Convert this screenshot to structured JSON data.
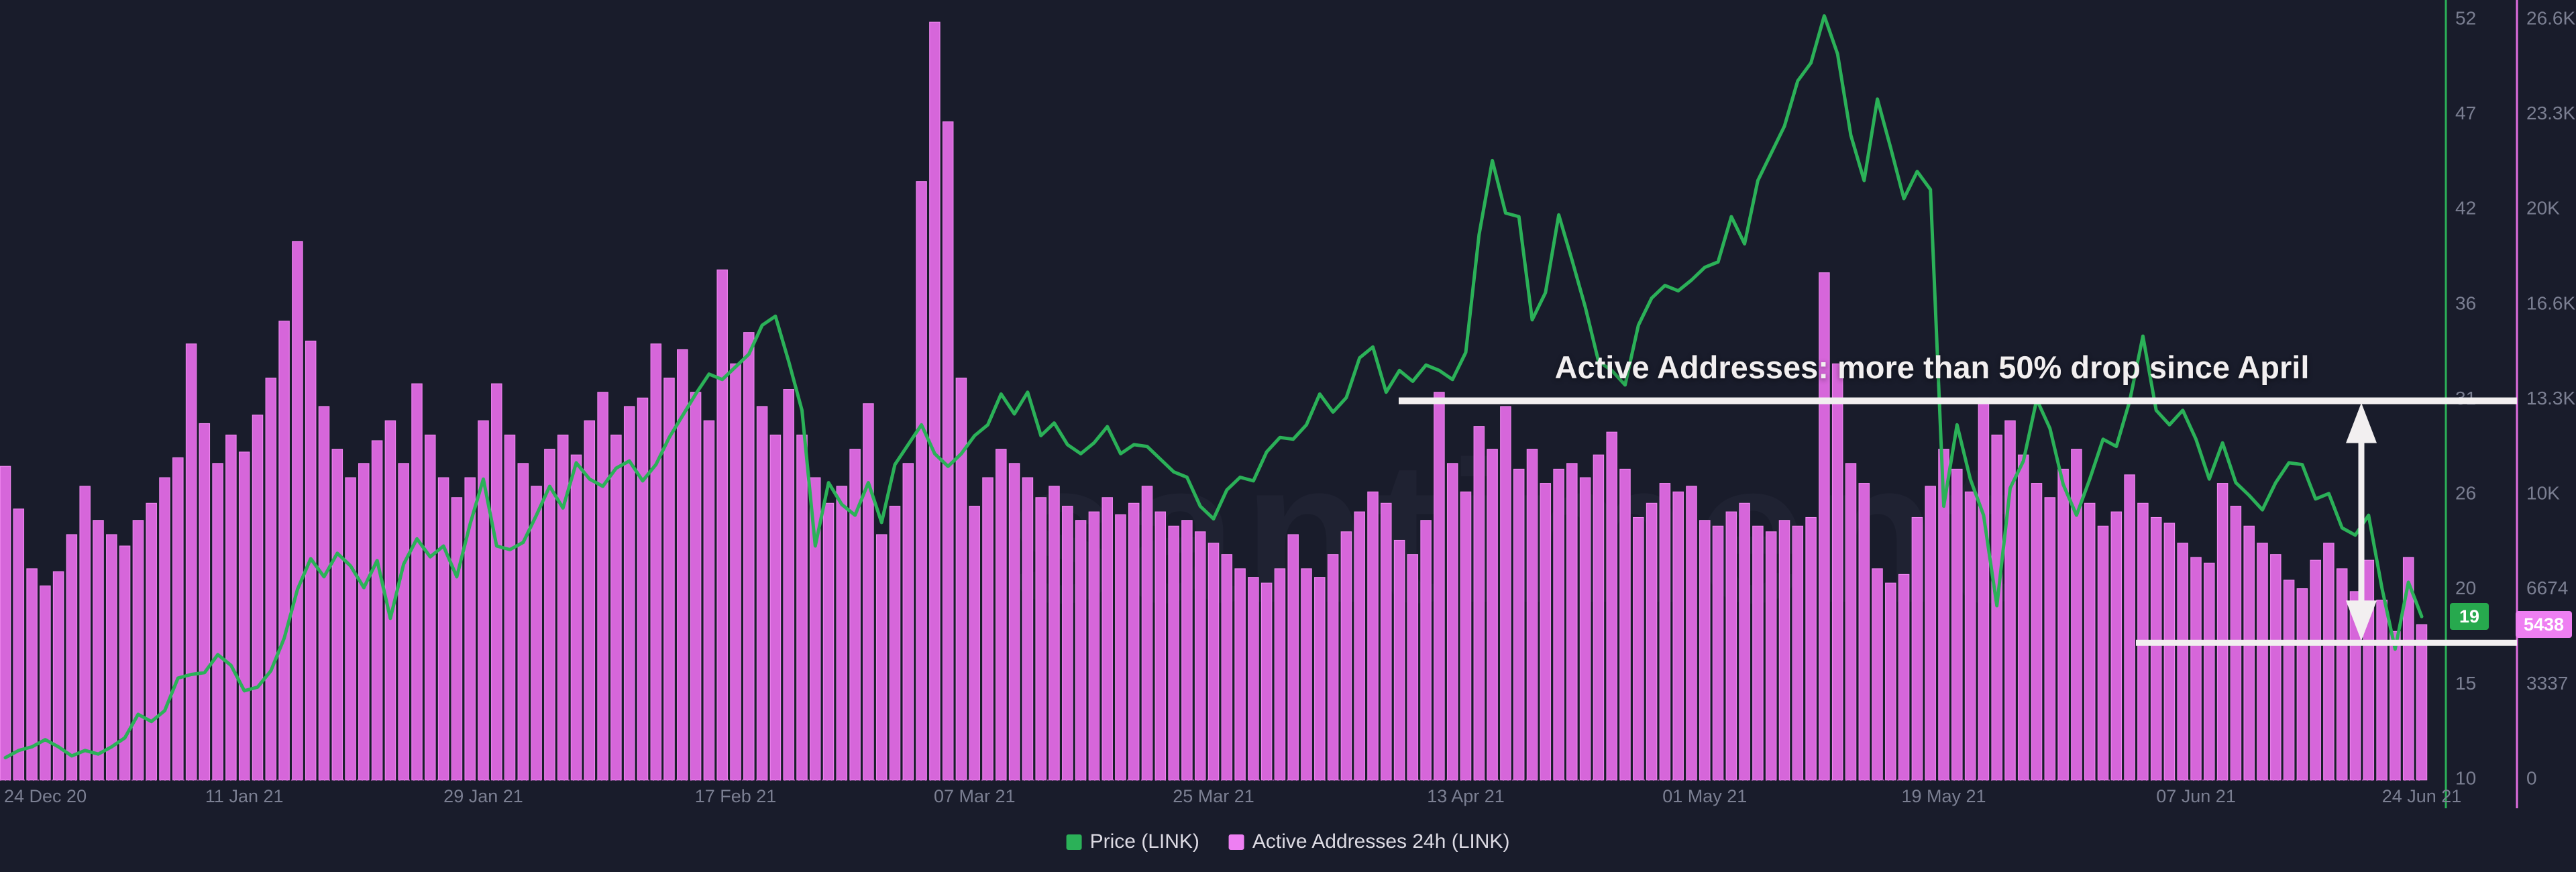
{
  "watermark": {
    "text": "santiment"
  },
  "annotation": {
    "text": "Active Addresses: more than 50% drop since April",
    "upper_level_addresses": 13300,
    "lower_level_addresses": 4800
  },
  "badges": {
    "price": {
      "label": "19",
      "value": 19
    },
    "addresses": {
      "label": "5438",
      "value": 5438
    }
  },
  "legend": [
    {
      "label": "Price (LINK)",
      "color": "#2bb158"
    },
    {
      "label": "Active Addresses 24h (LINK)",
      "color": "#ee7ff2"
    }
  ],
  "colors": {
    "background": "#191c2b",
    "price_line": "#2bb158",
    "price_axis_line": "#2bb158",
    "addresses_bar": "#d666da",
    "addresses_bar_edge": "#ef85f0",
    "addresses_axis_line": "#e26ee2",
    "axis_text": "#7b7f92",
    "annotation_white": "#f2eff0",
    "baseline_dotted": "rgba(214,102,218,0.55)"
  },
  "chart_data": {
    "type": "combo",
    "title": "",
    "frequency": "daily",
    "x_start_label": "24 Dec 20",
    "x_end_label": "24 Jun 21",
    "x_tick_labels": [
      {
        "label": "24 Dec 20",
        "day": 0
      },
      {
        "label": "11 Jan 21",
        "day": 18
      },
      {
        "label": "29 Jan 21",
        "day": 36
      },
      {
        "label": "17 Feb 21",
        "day": 55
      },
      {
        "label": "07 Mar 21",
        "day": 73
      },
      {
        "label": "25 Mar 21",
        "day": 91
      },
      {
        "label": "13 Apr 21",
        "day": 110
      },
      {
        "label": "01 May 21",
        "day": 128
      },
      {
        "label": "19 May 21",
        "day": 146
      },
      {
        "label": "07 Jun 21",
        "day": 165
      },
      {
        "label": "24 Jun 21",
        "day": 182
      }
    ],
    "price_axis": {
      "side": "right-inner",
      "min": 10,
      "max": 52,
      "tick_labels": [
        "52",
        "47",
        "42",
        "36",
        "31",
        "26",
        "20",
        "15",
        "10"
      ]
    },
    "addresses_axis": {
      "side": "right-outer",
      "min": 0,
      "max": 26696,
      "tick_labels": [
        "26.6K",
        "23.3K",
        "20K",
        "16.6K",
        "13.3K",
        "10K",
        "6674",
        "3337",
        "0"
      ]
    },
    "series": [
      {
        "name": "Price (LINK)",
        "type": "line",
        "axis": "price",
        "color": "#2bb158",
        "values": [
          11.2,
          11.6,
          11.8,
          12.2,
          11.8,
          11.3,
          11.6,
          11.4,
          11.8,
          12.3,
          13.6,
          13.2,
          13.8,
          15.6,
          15.8,
          15.9,
          16.9,
          16.3,
          14.9,
          15.1,
          16.0,
          17.8,
          20.5,
          22.2,
          21.2,
          22.5,
          21.8,
          20.6,
          22.1,
          18.9,
          21.9,
          23.3,
          22.3,
          22.9,
          21.2,
          24.1,
          26.6,
          22.9,
          22.7,
          23.1,
          24.6,
          26.2,
          25.0,
          27.5,
          26.6,
          26.2,
          27.2,
          27.6,
          26.5,
          27.4,
          28.9,
          30.1,
          31.3,
          32.4,
          32.1,
          32.8,
          33.5,
          35.1,
          35.6,
          33.1,
          30.4,
          22.9,
          26.4,
          25.2,
          24.6,
          26.4,
          24.2,
          27.4,
          28.5,
          29.6,
          28.0,
          27.3,
          28.0,
          29.0,
          29.6,
          31.3,
          30.2,
          31.4,
          29.0,
          29.7,
          28.5,
          28.0,
          28.6,
          29.5,
          28.0,
          28.5,
          28.4,
          27.7,
          27.0,
          26.7,
          25.1,
          24.4,
          26.0,
          26.7,
          26.5,
          28.1,
          28.9,
          28.8,
          29.6,
          31.3,
          30.3,
          31.1,
          33.3,
          33.9,
          31.4,
          32.6,
          32.0,
          32.9,
          32.6,
          32.1,
          33.6,
          40.1,
          44.2,
          41.3,
          41.1,
          35.4,
          36.9,
          41.2,
          38.7,
          36.1,
          33.1,
          32.6,
          31.8,
          35.1,
          36.6,
          37.3,
          37.0,
          37.6,
          38.3,
          38.6,
          41.1,
          39.6,
          43.1,
          44.6,
          46.1,
          48.6,
          49.6,
          52.2,
          50.1,
          45.6,
          43.1,
          47.6,
          44.9,
          42.1,
          43.6,
          42.6,
          25.1,
          29.6,
          26.6,
          24.6,
          19.6,
          26.1,
          27.6,
          31.0,
          29.4,
          26.3,
          24.6,
          26.6,
          28.8,
          28.4,
          30.9,
          34.5,
          30.4,
          29.6,
          30.4,
          28.8,
          26.6,
          28.6,
          26.4,
          25.7,
          24.9,
          26.4,
          27.5,
          27.4,
          25.5,
          25.8,
          23.9,
          23.5,
          24.6,
          20.6,
          17.2,
          20.9,
          19.0
        ]
      },
      {
        "name": "Active Addresses 24h (LINK)",
        "type": "bar",
        "axis": "addresses",
        "color": "#d666da",
        "values": [
          11000,
          9500,
          7400,
          6800,
          7300,
          8600,
          10300,
          9100,
          8600,
          8200,
          9100,
          9700,
          10600,
          11300,
          15300,
          12500,
          11100,
          12100,
          11500,
          12800,
          14100,
          16100,
          18900,
          15400,
          13100,
          11600,
          10600,
          11100,
          11900,
          12600,
          11100,
          13900,
          12100,
          10600,
          9900,
          10600,
          12600,
          13900,
          12100,
          11100,
          10300,
          11600,
          12100,
          11400,
          12600,
          13600,
          12100,
          13100,
          13400,
          15300,
          14100,
          15100,
          13600,
          12600,
          17900,
          14600,
          15700,
          13100,
          12100,
          13700,
          12100,
          10600,
          9700,
          10300,
          11600,
          13200,
          8600,
          9600,
          11100,
          21000,
          26600,
          23100,
          14100,
          9600,
          10600,
          11600,
          11100,
          10600,
          9900,
          10300,
          9600,
          9100,
          9400,
          9900,
          9300,
          9700,
          10300,
          9400,
          8900,
          9100,
          8700,
          8300,
          7900,
          7400,
          7100,
          6900,
          7400,
          8600,
          7400,
          7100,
          7900,
          8700,
          9400,
          10100,
          9700,
          8400,
          7900,
          9100,
          13600,
          11100,
          10100,
          12400,
          11600,
          13100,
          10900,
          11600,
          10400,
          10900,
          11100,
          10600,
          11400,
          12200,
          10900,
          9200,
          9700,
          10400,
          10100,
          10300,
          9100,
          8900,
          9400,
          9700,
          8900,
          8700,
          9100,
          8900,
          9200,
          17800,
          14600,
          11100,
          10400,
          7400,
          6900,
          7200,
          9200,
          10300,
          11600,
          10900,
          10100,
          13400,
          12100,
          12600,
          11400,
          10400,
          9900,
          10900,
          11600,
          9700,
          8900,
          9400,
          10700,
          9700,
          9200,
          9000,
          8300,
          7800,
          7600,
          10400,
          9600,
          8900,
          8300,
          7900,
          7000,
          6700,
          7700,
          8300,
          7400,
          6600,
          7700,
          6300,
          5200,
          7800,
          5438
        ]
      }
    ],
    "last_values": {
      "price": 19,
      "addresses": 5438
    },
    "grid": false,
    "legend_position": "bottom-center"
  }
}
